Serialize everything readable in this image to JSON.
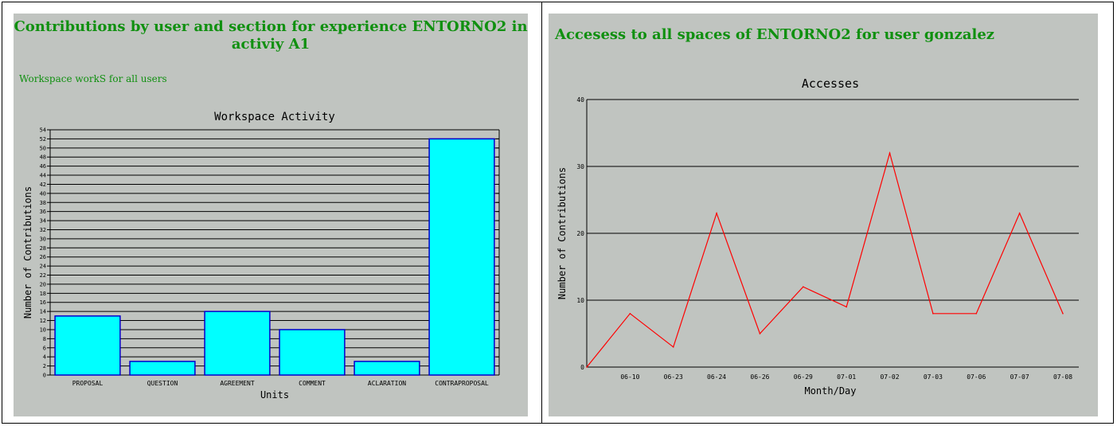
{
  "left": {
    "heading": "Contributions by user and section for experience ENTORNO2 in activiy A1",
    "subtitle": "Workspace workS for all users"
  },
  "right": {
    "heading": "Accesess to all spaces of ENTORNO2 for user gonzalez"
  },
  "colors": {
    "panel_bg": "#c0c4c0",
    "heading": "#109010",
    "bar_fill": "#00ffff",
    "bar_stroke": "#0000cc",
    "line": "#ff0000"
  },
  "chart_data": [
    {
      "type": "bar",
      "title": "Workspace Activity",
      "xlabel": "Units",
      "ylabel": "Number of Contributions",
      "categories": [
        "PROPOSAL",
        "QUESTION",
        "AGREEMENT",
        "COMMENT",
        "ACLARATION",
        "CONTRAPROPOSAL"
      ],
      "values": [
        13,
        3,
        14,
        10,
        3,
        52
      ],
      "ylim": [
        0,
        54
      ],
      "ytick_step": 2,
      "grid": true
    },
    {
      "type": "line",
      "title": "Accesses",
      "xlabel": "Month/Day",
      "ylabel": "Number of Contributions",
      "x": [
        "",
        "06-10",
        "06-23",
        "06-24",
        "06-26",
        "06-29",
        "07-01",
        "07-02",
        "07-03",
        "07-06",
        "07-07",
        "07-08"
      ],
      "values": [
        0,
        8,
        3,
        23,
        5,
        12,
        9,
        32,
        8,
        8,
        23,
        8
      ],
      "ylim": [
        0,
        40
      ],
      "yticks": [
        0,
        10,
        20,
        30,
        40
      ],
      "grid": true
    }
  ]
}
